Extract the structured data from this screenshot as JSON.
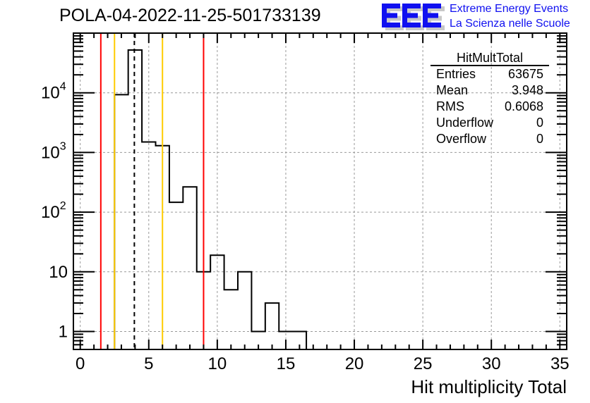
{
  "title": "POLA-04-2022-11-25-501733139",
  "logo": {
    "mark": "EEE",
    "line1": "Extreme Energy Events",
    "line2": "La Scienza nelle Scuole",
    "color": "#1010f0"
  },
  "stats": {
    "name": "HitMultTotal",
    "rows": [
      {
        "label": "Entries",
        "value": "63675"
      },
      {
        "label": "Mean",
        "value": "3.948"
      },
      {
        "label": "RMS",
        "value": "0.6068"
      },
      {
        "label": "Underflow",
        "value": "0"
      },
      {
        "label": "Overflow",
        "value": "0"
      }
    ]
  },
  "chart_data": {
    "type": "bar",
    "histogram": true,
    "title": "POLA-04-2022-11-25-501733139",
    "xlabel": "Hit multiplicity Total",
    "ylabel": "",
    "xlim": [
      -0.5,
      35.5
    ],
    "ylim": [
      0.5,
      100000
    ],
    "yscale": "log",
    "grid": true,
    "xticks": [
      0,
      5,
      10,
      15,
      20,
      25,
      30,
      35
    ],
    "yticks": [
      {
        "v": 1,
        "t": "1"
      },
      {
        "v": 10,
        "t": "10"
      },
      {
        "v": 100,
        "t": "10",
        "e": "2"
      },
      {
        "v": 1000,
        "t": "10",
        "e": "3"
      },
      {
        "v": 10000,
        "t": "10",
        "e": "4"
      }
    ],
    "bin_centers": [
      3,
      4,
      5,
      6,
      7,
      8,
      9,
      10,
      11,
      12,
      13,
      14,
      15,
      16
    ],
    "values": [
      9300,
      52000,
      1500,
      1300,
      146,
      265,
      10,
      19,
      5,
      10,
      1,
      3,
      1,
      1
    ],
    "vlines": [
      {
        "x": 1.5,
        "color": "#ff0000"
      },
      {
        "x": 9.0,
        "color": "#ff0000"
      },
      {
        "x": 2.5,
        "color": "#ffcc00"
      },
      {
        "x": 6.0,
        "color": "#ffcc00"
      },
      {
        "x": 3.948,
        "color": "#000000",
        "dashed": true
      }
    ]
  }
}
